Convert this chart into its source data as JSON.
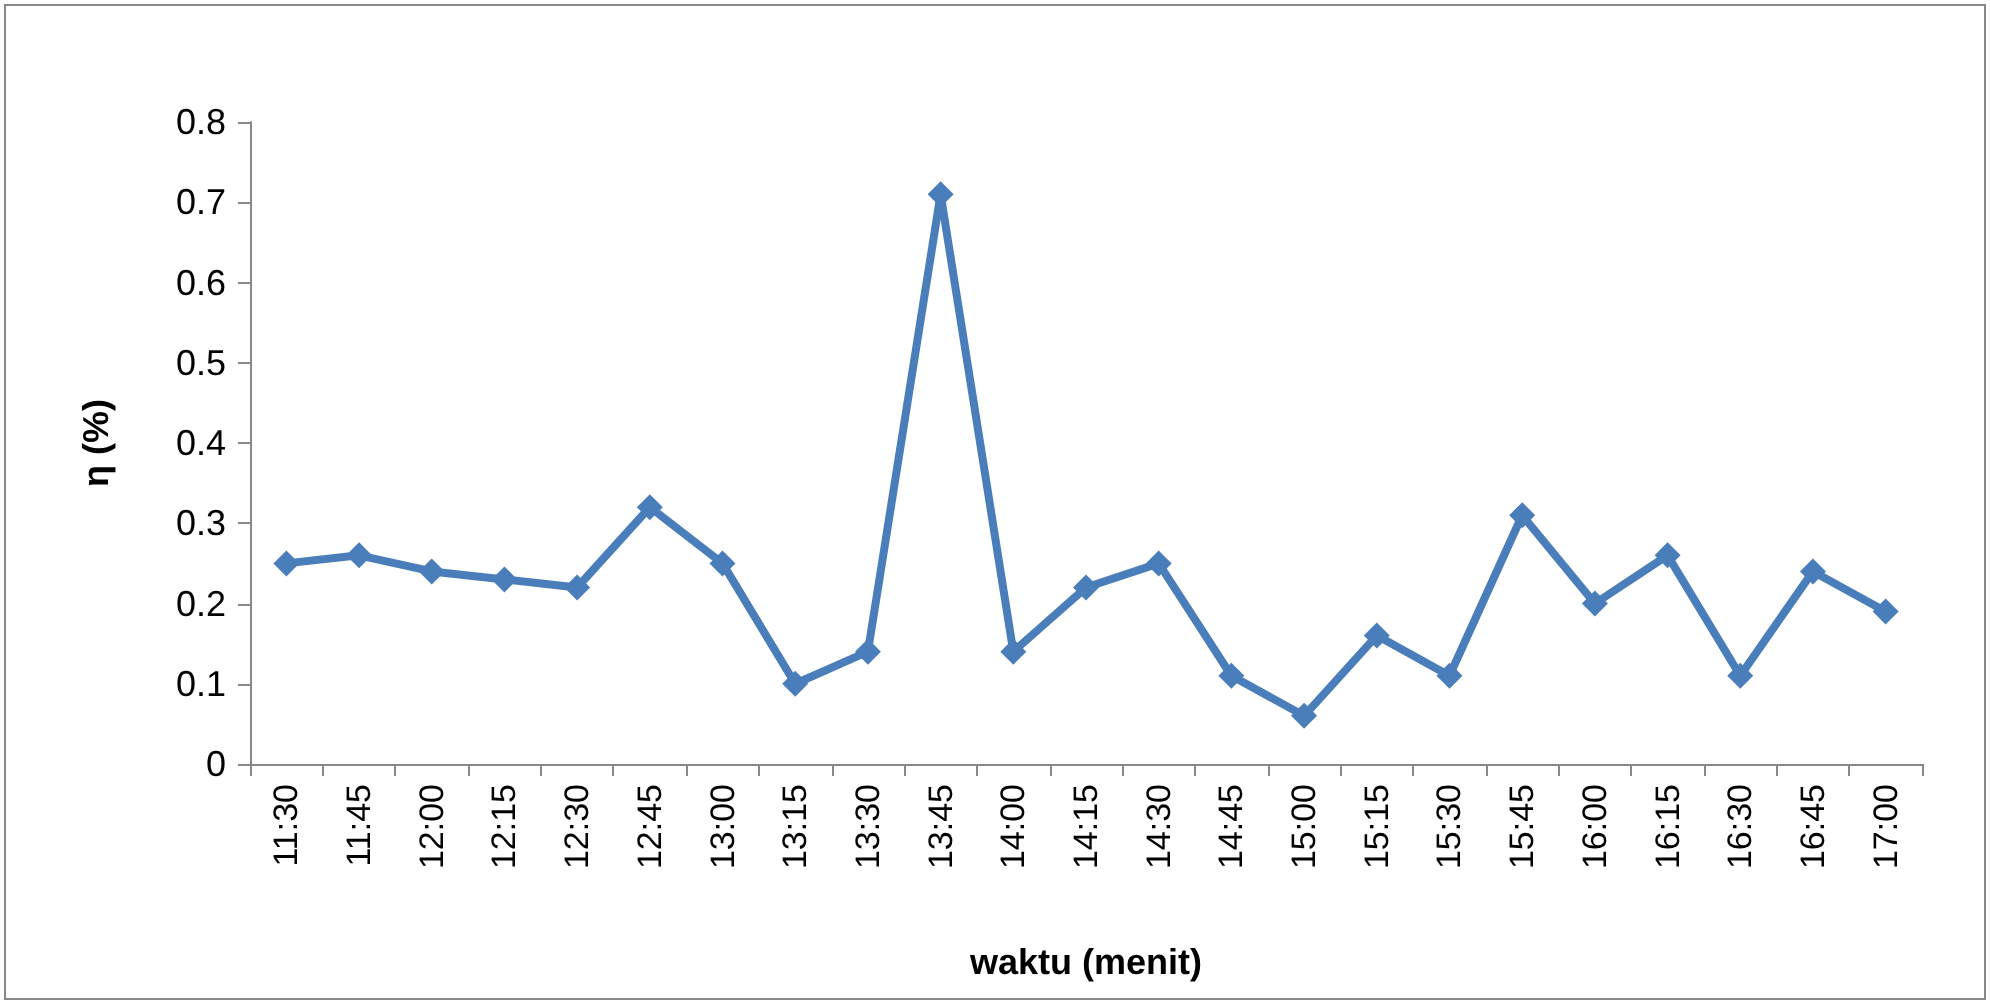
{
  "chart_data": {
    "type": "line",
    "xlabel": "waktu (menit)",
    "ylabel": "η (%)",
    "categories": [
      "11:30",
      "11:45",
      "12:00",
      "12:15",
      "12:30",
      "12:45",
      "13:00",
      "13:15",
      "13:30",
      "13:45",
      "14:00",
      "14:15",
      "14:30",
      "14:45",
      "15:00",
      "15:15",
      "15:30",
      "15:45",
      "16:00",
      "16:15",
      "16:30",
      "16:45",
      "17:00"
    ],
    "series": [
      {
        "color": "#4a7ebb",
        "values": [
          0.25,
          0.26,
          0.24,
          0.23,
          0.22,
          0.32,
          0.25,
          0.1,
          0.14,
          0.71,
          0.14,
          0.22,
          0.25,
          0.11,
          0.06,
          0.16,
          0.11,
          0.31,
          0.2,
          0.26,
          0.11,
          0.24,
          0.19
        ]
      }
    ],
    "ylim": [
      0,
      0.8
    ],
    "yticks": [
      0,
      0.1,
      0.2,
      0.3,
      0.4,
      0.5,
      0.6,
      0.7,
      0.8
    ],
    "grid": false,
    "marker": "diamond",
    "line_style": "solid"
  }
}
